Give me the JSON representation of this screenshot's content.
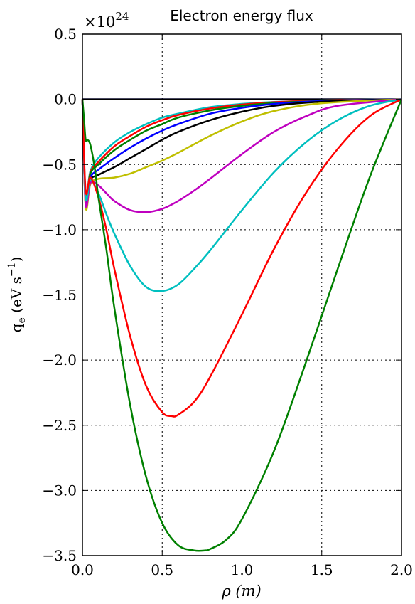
{
  "chart_data": {
    "type": "line",
    "title": "Electron energy flux",
    "xlabel": "ρ (m)",
    "ylabel_main": "q",
    "ylabel_sub": "e",
    "ylabel_unit": " (eV s",
    "ylabel_exp": "−1",
    "ylabel_close": ")",
    "ylabel_note": "y label printed as q_e (eV s^-1)",
    "offset_base": "×10",
    "offset_exp": "24",
    "xlim": [
      0,
      2.0
    ],
    "ylim": [
      -3.5,
      0.5
    ],
    "x_ticks": [
      0.0,
      0.5,
      1.0,
      1.5,
      2.0
    ],
    "x_tick_labels": [
      "0.0",
      "0.5",
      "1.0",
      "1.5",
      "2.0"
    ],
    "y_ticks": [
      0.5,
      0.0,
      -0.5,
      -1.0,
      -1.5,
      -2.0,
      -2.5,
      -3.0,
      -3.5
    ],
    "y_tick_labels": [
      "0.5",
      "0.0",
      "−0.5",
      "−1.0",
      "−1.5",
      "−2.0",
      "−2.5",
      "−3.0",
      "−3.5"
    ],
    "grid": true,
    "series": [
      {
        "color": "#0000ff",
        "x": [
          0,
          2.0
        ],
        "y": [
          0,
          0
        ]
      },
      {
        "color": "#000000",
        "x": [
          0,
          2.0
        ],
        "y": [
          0,
          0
        ]
      },
      {
        "color": "#00bfbf",
        "x": [
          0,
          0.02,
          0.05,
          0.1,
          0.2,
          0.3,
          0.4,
          0.5,
          0.6,
          0.8,
          1.0,
          1.2,
          1.5,
          2.0
        ],
        "y": [
          0,
          -0.72,
          -0.55,
          -0.45,
          -0.33,
          -0.25,
          -0.19,
          -0.14,
          -0.11,
          -0.06,
          -0.035,
          -0.02,
          -0.008,
          0
        ]
      },
      {
        "color": "#ff0000",
        "x": [
          0,
          0.02,
          0.05,
          0.1,
          0.2,
          0.3,
          0.4,
          0.5,
          0.6,
          0.8,
          1.0,
          1.2,
          1.5,
          2.0
        ],
        "y": [
          0,
          -0.75,
          -0.56,
          -0.48,
          -0.36,
          -0.28,
          -0.21,
          -0.16,
          -0.12,
          -0.07,
          -0.04,
          -0.022,
          -0.009,
          0
        ]
      },
      {
        "color": "#008000",
        "x": [
          0,
          0.02,
          0.05,
          0.1,
          0.2,
          0.3,
          0.4,
          0.5,
          0.6,
          0.8,
          1.0,
          1.2,
          1.5,
          2.0
        ],
        "y": [
          0,
          -0.76,
          -0.57,
          -0.5,
          -0.39,
          -0.31,
          -0.24,
          -0.19,
          -0.14,
          -0.085,
          -0.05,
          -0.028,
          -0.012,
          0
        ]
      },
      {
        "color": "#0000ff",
        "x": [
          0,
          0.02,
          0.05,
          0.1,
          0.2,
          0.3,
          0.4,
          0.5,
          0.6,
          0.8,
          1.0,
          1.2,
          1.5,
          2.0
        ],
        "y": [
          0,
          -0.78,
          -0.6,
          -0.54,
          -0.45,
          -0.37,
          -0.3,
          -0.24,
          -0.19,
          -0.11,
          -0.065,
          -0.035,
          -0.013,
          0
        ]
      },
      {
        "color": "#000000",
        "x": [
          0,
          0.02,
          0.05,
          0.1,
          0.2,
          0.3,
          0.4,
          0.5,
          0.6,
          0.8,
          1.0,
          1.2,
          1.5,
          2.0
        ],
        "y": [
          0,
          -0.8,
          -0.62,
          -0.58,
          -0.52,
          -0.45,
          -0.38,
          -0.31,
          -0.25,
          -0.16,
          -0.095,
          -0.05,
          -0.018,
          0
        ]
      },
      {
        "color": "#bfbf00",
        "x": [
          0,
          0.02,
          0.05,
          0.1,
          0.2,
          0.3,
          0.4,
          0.5,
          0.6,
          0.8,
          1.0,
          1.2,
          1.5,
          2.0
        ],
        "y": [
          0,
          -0.82,
          -0.65,
          -0.61,
          -0.6,
          -0.57,
          -0.52,
          -0.47,
          -0.41,
          -0.28,
          -0.17,
          -0.09,
          -0.03,
          0
        ]
      },
      {
        "color": "#bf00bf",
        "x": [
          0,
          0.02,
          0.05,
          0.1,
          0.15,
          0.2,
          0.3,
          0.4,
          0.5,
          0.6,
          0.7,
          0.8,
          1.0,
          1.2,
          1.4,
          1.6,
          2.0
        ],
        "y": [
          0,
          -0.8,
          -0.64,
          -0.66,
          -0.72,
          -0.78,
          -0.85,
          -0.865,
          -0.84,
          -0.78,
          -0.7,
          -0.61,
          -0.42,
          -0.25,
          -0.13,
          -0.05,
          0
        ]
      },
      {
        "color": "#00bfbf",
        "x": [
          0,
          0.02,
          0.05,
          0.1,
          0.15,
          0.2,
          0.3,
          0.4,
          0.5,
          0.6,
          0.7,
          0.8,
          1.0,
          1.2,
          1.4,
          1.6,
          1.8,
          2.0
        ],
        "y": [
          0,
          -0.75,
          -0.62,
          -0.72,
          -0.88,
          -1.03,
          -1.28,
          -1.44,
          -1.47,
          -1.42,
          -1.3,
          -1.16,
          -0.85,
          -0.56,
          -0.33,
          -0.16,
          -0.05,
          0
        ]
      },
      {
        "color": "#ff0000",
        "x": [
          0,
          0.02,
          0.05,
          0.1,
          0.15,
          0.2,
          0.3,
          0.4,
          0.5,
          0.56,
          0.6,
          0.7,
          0.8,
          1.0,
          1.2,
          1.4,
          1.6,
          1.8,
          2.0
        ],
        "y": [
          0,
          -0.7,
          -0.6,
          -0.75,
          -1.0,
          -1.3,
          -1.82,
          -2.2,
          -2.4,
          -2.43,
          -2.42,
          -2.32,
          -2.13,
          -1.65,
          -1.15,
          -0.72,
          -0.38,
          -0.13,
          0
        ]
      },
      {
        "color": "#008000",
        "x": [
          0,
          0.01,
          0.02,
          0.03,
          0.05,
          0.08,
          0.1,
          0.15,
          0.2,
          0.3,
          0.4,
          0.5,
          0.6,
          0.7,
          0.77,
          0.8,
          0.9,
          1.0,
          1.2,
          1.4,
          1.6,
          1.8,
          2.0
        ],
        "y": [
          0,
          -0.15,
          -0.31,
          -0.31,
          -0.35,
          -0.55,
          -0.75,
          -1.15,
          -1.6,
          -2.35,
          -2.9,
          -3.25,
          -3.42,
          -3.46,
          -3.46,
          -3.45,
          -3.38,
          -3.22,
          -2.7,
          -2.02,
          -1.3,
          -0.6,
          0
        ]
      }
    ]
  }
}
